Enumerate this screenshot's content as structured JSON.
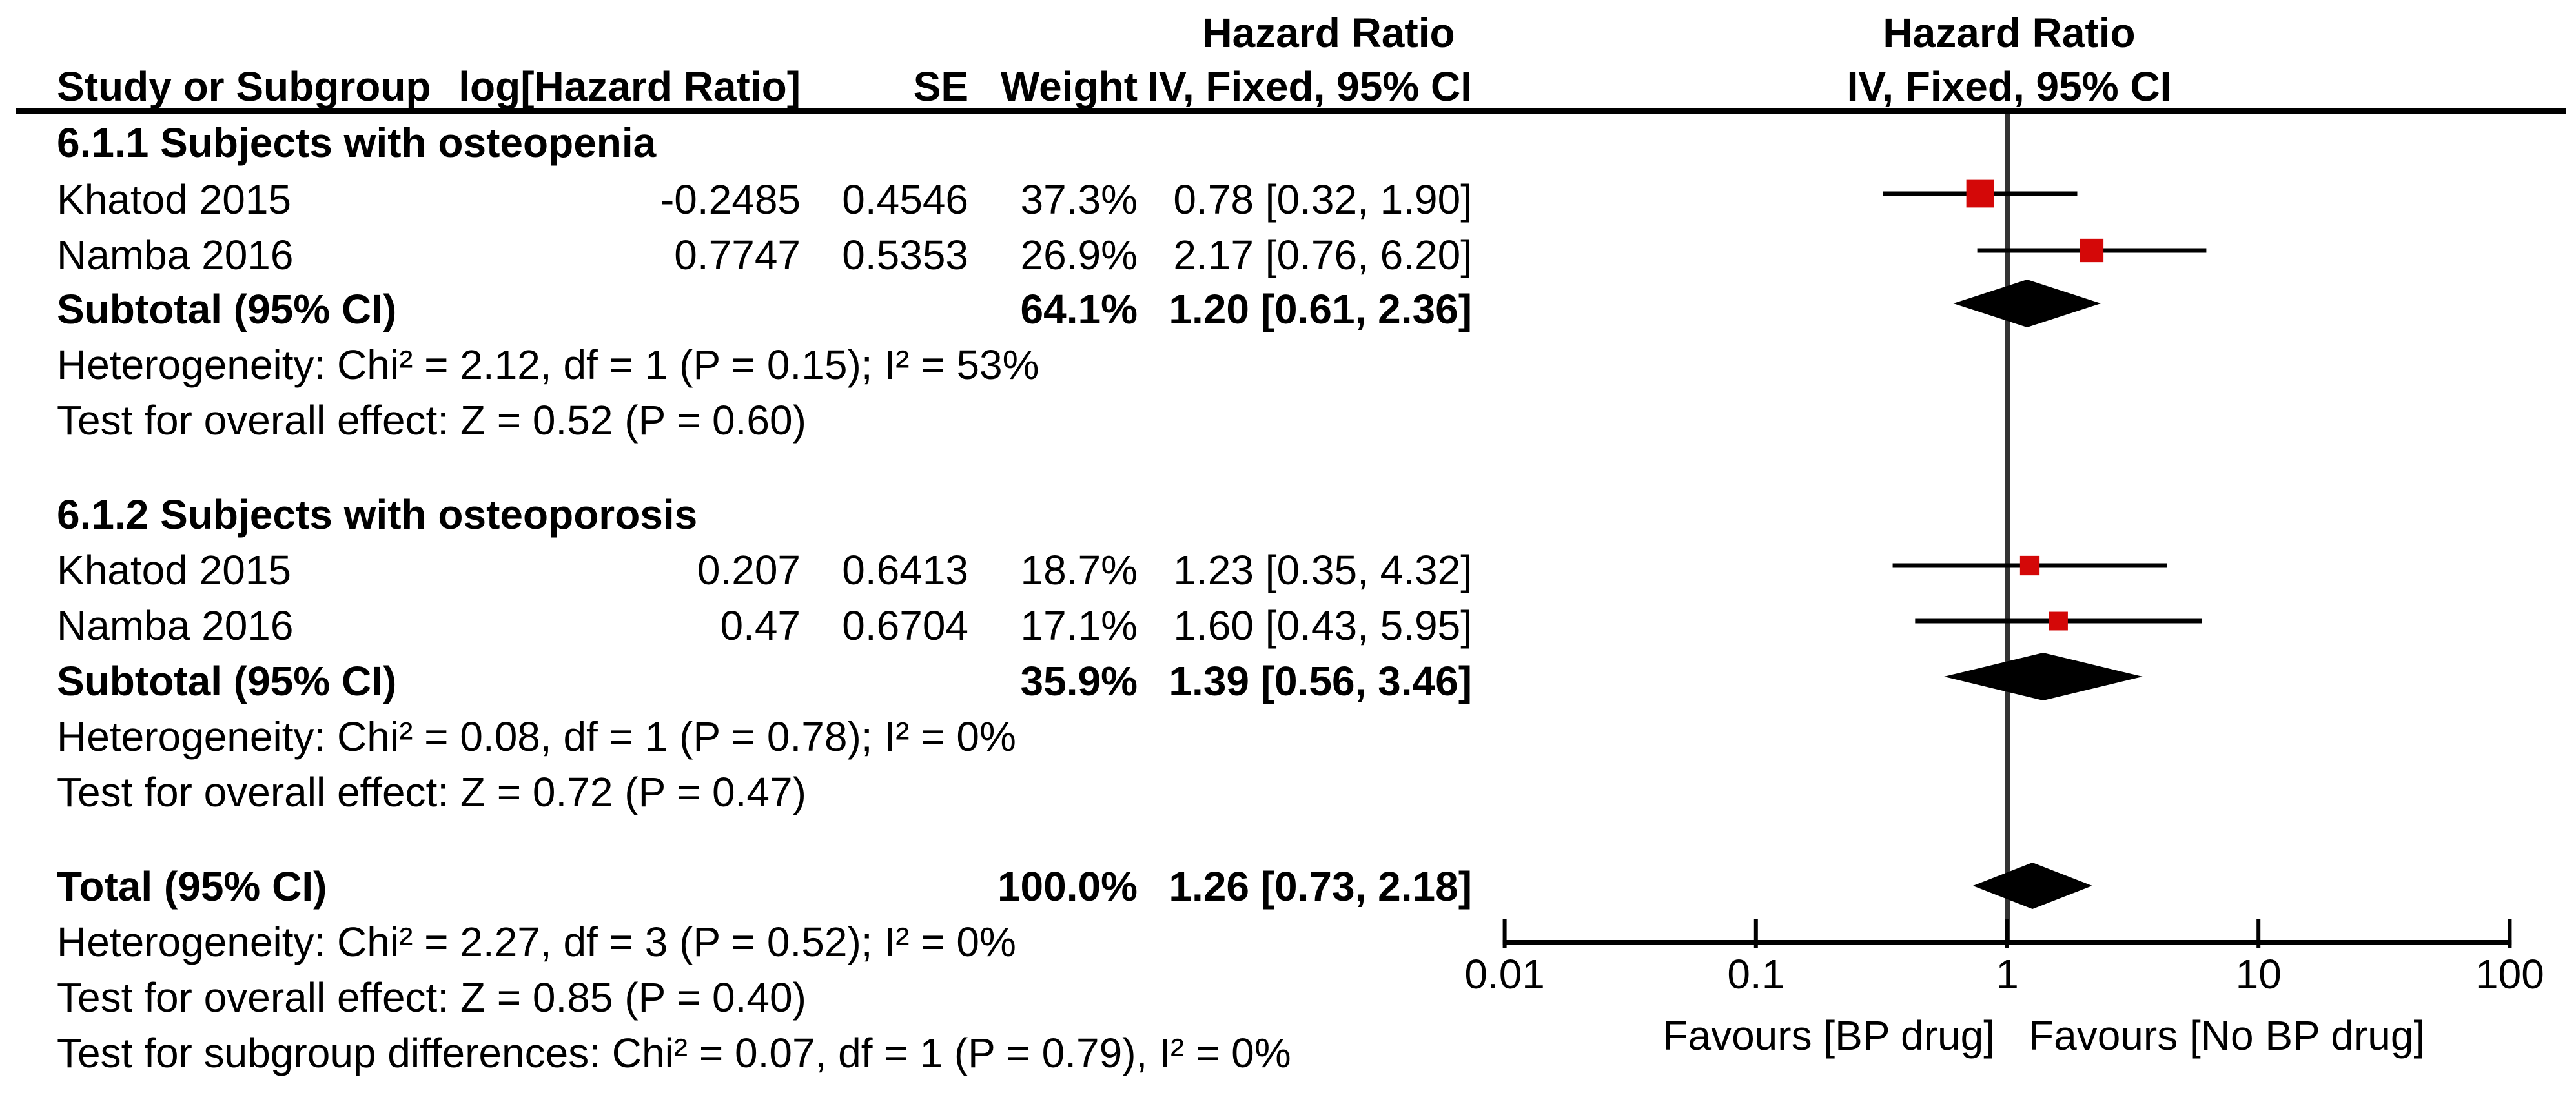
{
  "header": {
    "table_effect_title": "Hazard Ratio",
    "plot_effect_title": "Hazard Ratio",
    "columns": {
      "study": "Study or Subgroup",
      "log_hr": "log[Hazard Ratio]",
      "se": "SE",
      "weight": "Weight",
      "ci": "IV, Fixed, 95% CI",
      "plot_ci": "IV, Fixed, 95% CI"
    }
  },
  "chart_data": {
    "type": "forest",
    "effect_measure": "Hazard Ratio",
    "method": "IV, Fixed, 95% CI",
    "axis": {
      "scale": "log10",
      "min": 0.01,
      "max": 100,
      "ref_line": 1,
      "ticks": [
        0.01,
        0.1,
        1,
        10,
        100
      ],
      "tick_labels": [
        "0.01",
        "0.1",
        "1",
        "10",
        "100"
      ]
    },
    "favours": {
      "left": "Favours [BP drug]",
      "right": "Favours [No BP drug]"
    },
    "groups": [
      {
        "heading": "6.1.1 Subjects with osteopenia",
        "studies": [
          {
            "name": "Khatod 2015",
            "log_hr": "-0.2485",
            "se": "0.4546",
            "weight": "37.3%",
            "weight_value": 37.3,
            "hr": 0.78,
            "ci_low": 0.32,
            "ci_high": 1.9,
            "ci_text": "0.78 [0.32, 1.90]"
          },
          {
            "name": "Namba 2016",
            "log_hr": "0.7747",
            "se": "0.5353",
            "weight": "26.9%",
            "weight_value": 26.9,
            "hr": 2.17,
            "ci_low": 0.76,
            "ci_high": 6.2,
            "ci_text": "2.17 [0.76, 6.20]"
          }
        ],
        "subtotal": {
          "label": "Subtotal (95% CI)",
          "weight": "64.1%",
          "hr": 1.2,
          "ci_low": 0.61,
          "ci_high": 2.36,
          "ci_text": "1.20 [0.61, 2.36]"
        },
        "heterogeneity": "Heterogeneity: Chi² = 2.12, df = 1 (P = 0.15); I² = 53%",
        "overall_effect": "Test for overall effect: Z = 0.52 (P = 0.60)"
      },
      {
        "heading": "6.1.2 Subjects with osteoporosis",
        "studies": [
          {
            "name": "Khatod 2015",
            "log_hr": "0.207",
            "se": "0.6413",
            "weight": "18.7%",
            "weight_value": 18.7,
            "hr": 1.23,
            "ci_low": 0.35,
            "ci_high": 4.32,
            "ci_text": "1.23 [0.35, 4.32]"
          },
          {
            "name": "Namba 2016",
            "log_hr": "0.47",
            "se": "0.6704",
            "weight": "17.1%",
            "weight_value": 17.1,
            "hr": 1.6,
            "ci_low": 0.43,
            "ci_high": 5.95,
            "ci_text": "1.60 [0.43, 5.95]"
          }
        ],
        "subtotal": {
          "label": "Subtotal (95% CI)",
          "weight": "35.9%",
          "hr": 1.39,
          "ci_low": 0.56,
          "ci_high": 3.46,
          "ci_text": "1.39 [0.56, 3.46]"
        },
        "heterogeneity": "Heterogeneity: Chi² = 0.08, df = 1 (P = 0.78); I² = 0%",
        "overall_effect": "Test for overall effect: Z = 0.72 (P = 0.47)"
      }
    ],
    "total": {
      "label": "Total (95% CI)",
      "weight": "100.0%",
      "hr": 1.26,
      "ci_low": 0.73,
      "ci_high": 2.18,
      "ci_text": "1.26 [0.73, 2.18]",
      "heterogeneity": "Heterogeneity: Chi² = 2.27, df = 3 (P = 0.52); I² = 0%",
      "overall_effect": "Test for overall effect: Z = 0.85 (P = 0.40)",
      "subgroup_differences": "Test for subgroup differences: Chi² = 0.07, df = 1 (P = 0.79), I² = 0%"
    },
    "colors": {
      "marker_red": "#D40808",
      "line_black": "#000000",
      "ref_line_gray": "#333333",
      "diamond_black": "#000000"
    }
  }
}
